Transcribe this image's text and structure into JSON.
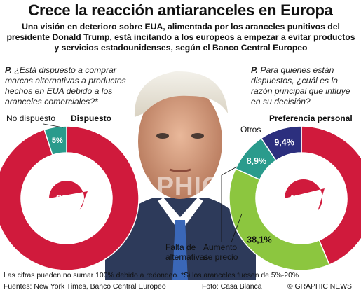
{
  "title": "Crece la reacción antiaranceles en Europa",
  "subtitle": "Una visión en deterioro sobre EUA, alimentada por los aranceles punitivos del presidente Donald Trump, está incitando a los europeos a empezar a evitar productos y servicios estadounidenses, según el Banco Central Europeo",
  "watermark": "GRAPHIC NEWS",
  "colors": {
    "red": "#d01a3c",
    "teal": "#2a9b8c",
    "navy": "#2c2f7e",
    "green": "#8cc63f",
    "text": "#111111"
  },
  "chart_data": [
    {
      "type": "pie",
      "variant": "donut",
      "question_prefix": "P.",
      "question": "¿Está dispuesto a comprar marcas alternativas a productos hechos en EUA debido a los aranceles comerciales?*",
      "slices": [
        {
          "label": "Dispuesto",
          "value": 95,
          "display": "95%",
          "color": "#d01a3c"
        },
        {
          "label": "No dispuesto",
          "value": 5,
          "display": "5%",
          "color": "#2a9b8c"
        }
      ]
    },
    {
      "type": "pie",
      "variant": "donut",
      "question_prefix": "P.",
      "question": "Para quienes están dispuestos, ¿cuál es la razón principal que influye en su decisión?",
      "slices": [
        {
          "label": "Preferencia personal",
          "value": 43.7,
          "display": "43,7%",
          "color": "#d01a3c"
        },
        {
          "label": "Aumento de precio",
          "value": 38.1,
          "display": "38,1%",
          "color": "#8cc63f"
        },
        {
          "label": "Falta de alternativas",
          "value": 8.9,
          "display": "8,9%",
          "color": "#2a9b8c"
        },
        {
          "label": "Otros",
          "value": 9.4,
          "display": "9,4%",
          "color": "#2c2f7e"
        }
      ]
    }
  ],
  "labels": {
    "left_no": "No dispuesto",
    "left_yes": "Dispuesto",
    "right_pref": "Preferencia personal",
    "right_otros": "Otros",
    "right_falta": "Falta de alternativas",
    "right_aumento": "Aumento de precio"
  },
  "footer": {
    "note": "Las cifras pueden no sumar 100% debido a redondeo. *Si los aranceles fuesen de 5%-20%",
    "sources": "Fuentes: New York Times, Banco Central Europeo",
    "photo": "Foto: Casa Blanca",
    "copyright": "© GRAPHIC NEWS"
  }
}
